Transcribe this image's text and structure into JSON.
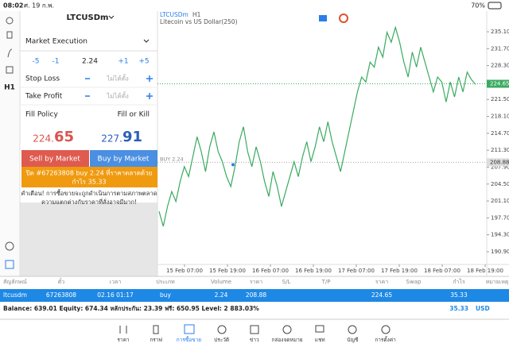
{
  "status_bar": {
    "time": "08:02",
    "date": "ศ. 19 ก.พ.",
    "battery": "70%"
  },
  "toolbar": {
    "timeframe": "H1"
  },
  "order_panel": {
    "symbol": "LTCUSDm",
    "execution": "Market Execution",
    "volume_steps": [
      "-5",
      "-1",
      "+1",
      "+5"
    ],
    "volume": "2.24",
    "stop_loss": {
      "label": "Stop Loss",
      "value": "ไม่ได้ตั้ง"
    },
    "take_profit": {
      "label": "Take Profit",
      "value": "ไม่ได้ตั้ง"
    },
    "fill_policy": {
      "label": "Fill Policy",
      "value": "Fill or Kill"
    },
    "bid": {
      "prefix": "224.",
      "digits": "65"
    },
    "ask": {
      "prefix": "227.",
      "digits": "91"
    },
    "sell_button": "Sell by Market",
    "buy_button": "Buy by Market",
    "notice": [
      "ปิด #67263808 buy 2.24 ที่ราคาตลาดด้วย",
      "กำไร 35.33"
    ],
    "warning": [
      "คำเตือน! การซื้อขายจะถูกดำเนินการตามสภาพตลาด",
      "ความแตกต่างกับราคาที่สั่งอาจมีมาก!"
    ]
  },
  "chart": {
    "symbol": "LTCUSDm",
    "timeframe": "H1",
    "description": "Litecoin vs US Dollar(250)",
    "position_label": "BUY 2.24",
    "yticks": [
      {
        "value": 235.1,
        "label": "235.10"
      },
      {
        "value": 231.7,
        "label": "231.70"
      },
      {
        "value": 228.3,
        "label": "228.30"
      },
      {
        "value": 221.5,
        "label": "221.50"
      },
      {
        "value": 218.1,
        "label": "218.10"
      },
      {
        "value": 214.7,
        "label": "214.70"
      },
      {
        "value": 211.3,
        "label": "211.30"
      },
      {
        "value": 207.9,
        "label": "207.90"
      },
      {
        "value": 204.5,
        "label": "204.50"
      },
      {
        "value": 201.1,
        "label": "201.10"
      },
      {
        "value": 197.7,
        "label": "197.70"
      },
      {
        "value": 194.3,
        "label": "194.30"
      },
      {
        "value": 190.9,
        "label": "190.90"
      }
    ],
    "ylim": [
      190.9,
      235.1
    ],
    "bid_line": {
      "value": 224.65,
      "label": "224.65"
    },
    "position_line": {
      "value": 208.88,
      "label": "208.88"
    },
    "x_labels": [
      "15 Feb 07:00",
      "15 Feb 19:00",
      "16 Feb 07:00",
      "16 Feb 19:00",
      "17 Feb 07:00",
      "17 Feb 19:00",
      "18 Feb 07:00",
      "18 Feb 19:00"
    ],
    "prices": [
      199,
      196,
      200,
      203,
      201,
      205,
      208,
      206,
      210,
      214,
      211,
      207,
      212,
      215,
      211,
      209,
      206,
      204,
      208,
      213,
      216,
      211,
      208,
      212,
      209,
      205,
      202,
      207,
      204,
      200,
      203,
      206,
      209,
      206,
      210,
      213,
      209,
      212,
      216,
      213,
      217,
      213,
      210,
      207,
      211,
      215,
      219,
      223,
      226,
      225,
      229,
      228,
      232,
      230,
      235,
      233,
      236,
      233,
      229,
      226,
      231,
      228,
      232,
      229,
      226,
      223,
      226,
      225,
      221,
      225,
      222,
      226,
      223,
      227,
      225.5,
      224.5
    ]
  },
  "table": {
    "headers": [
      "สัญลักษณ์",
      "ตั๋ว",
      "เวลา",
      "ประเภท",
      "Volume",
      "ราคา",
      "S/L",
      "T/P",
      "ราคา",
      "Swap",
      "กำไร",
      "หมายเหตุ"
    ],
    "row": [
      "ltcusdm",
      "67263808",
      "02.16 01:17",
      "buy",
      "2.24",
      "208.88",
      "224.65",
      "35.33"
    ],
    "balance": "Balance: 639.01 Equity: 674.34 หลักประกัน: 23.39 ฟรี: 650.95 Level: 2 883.03%",
    "total_profit": "35.33",
    "currency": "USD"
  },
  "nav": [
    "ราคา",
    "กราฟ",
    "การซื้อขาย",
    "ประวัติ",
    "ข่าว",
    "กล่องจดหมาย",
    "แชท",
    "บัญชี",
    "การตั้งค่า"
  ]
}
